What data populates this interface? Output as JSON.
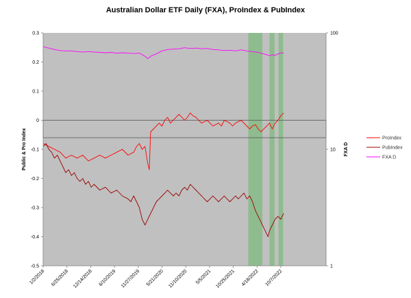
{
  "chart_data": {
    "type": "line",
    "title": "Australian Dollar ETF Daily (FXA), ProIndex & PubIndex",
    "ylabel": "Public & Pro Index",
    "y2label": "FXA D",
    "ylim": [
      -0.5,
      0.3
    ],
    "yticks": [
      "0.3",
      "0.2",
      "0.1",
      "0",
      "-0.1",
      "-0.2",
      "-0.3",
      "-0.4",
      "-0.5"
    ],
    "y2_scale": "log",
    "y2lim": [
      1,
      100
    ],
    "y2ticks": [
      "100",
      "10",
      "1"
    ],
    "x_range": [
      0,
      100
    ],
    "x_ticks": [
      "1/2/2018",
      "6/25/2018",
      "12/14/2018",
      "6/10/2019",
      "11/27/2019",
      "5/21/2020",
      "11/10/2020",
      "5/5/2021",
      "10/25/2021",
      "4/18/2022",
      "10/7/2022"
    ],
    "x_tick_positions": [
      0,
      8.4,
      16.8,
      25.2,
      33.6,
      42.0,
      50.4,
      58.8,
      67.2,
      75.6,
      84.0
    ],
    "highlight_bands": [
      [
        72.5,
        77.5
      ],
      [
        80.0,
        81.8
      ],
      [
        83.2,
        84.8
      ]
    ],
    "reference_box": {
      "y_top": 0.0,
      "y_bottom": -0.06
    },
    "background": "#c0c0c0",
    "band_color": "#8fbc8f",
    "legend_position": "right",
    "series": [
      {
        "name": "ProIndex",
        "axis": "left",
        "color": "#ff0000",
        "points": [
          [
            0,
            -0.08
          ],
          [
            2,
            -0.09
          ],
          [
            4,
            -0.1
          ],
          [
            6,
            -0.11
          ],
          [
            8,
            -0.13
          ],
          [
            10,
            -0.12
          ],
          [
            12,
            -0.13
          ],
          [
            14,
            -0.12
          ],
          [
            16,
            -0.14
          ],
          [
            18,
            -0.13
          ],
          [
            20,
            -0.12
          ],
          [
            22,
            -0.13
          ],
          [
            24,
            -0.12
          ],
          [
            26,
            -0.11
          ],
          [
            28,
            -0.1
          ],
          [
            30,
            -0.12
          ],
          [
            32,
            -0.11
          ],
          [
            33,
            -0.09
          ],
          [
            34,
            -0.08
          ],
          [
            35,
            -0.1
          ],
          [
            36,
            -0.09
          ],
          [
            37,
            -0.15
          ],
          [
            37.5,
            -0.17
          ],
          [
            38,
            -0.04
          ],
          [
            40,
            -0.02
          ],
          [
            41,
            -0.01
          ],
          [
            42,
            -0.02
          ],
          [
            43,
            0.0
          ],
          [
            44,
            0.01
          ],
          [
            45,
            -0.01
          ],
          [
            46,
            0.0
          ],
          [
            47,
            0.01
          ],
          [
            48,
            0.02
          ],
          [
            49,
            0.01
          ],
          [
            50,
            0.0
          ],
          [
            51,
            0.01
          ],
          [
            52,
            0.025
          ],
          [
            53,
            0.015
          ],
          [
            54,
            0.01
          ],
          [
            55,
            0.0
          ],
          [
            56,
            -0.01
          ],
          [
            57,
            -0.005
          ],
          [
            58,
            0.0
          ],
          [
            59,
            -0.01
          ],
          [
            60,
            -0.02
          ],
          [
            62,
            -0.01
          ],
          [
            63,
            -0.02
          ],
          [
            64,
            0.0
          ],
          [
            66,
            -0.01
          ],
          [
            67,
            -0.02
          ],
          [
            68,
            -0.01
          ],
          [
            70,
            0.0
          ],
          [
            71,
            -0.01
          ],
          [
            72,
            -0.02
          ],
          [
            73,
            -0.03
          ],
          [
            74,
            -0.02
          ],
          [
            75,
            -0.015
          ],
          [
            76,
            -0.03
          ],
          [
            77,
            -0.04
          ],
          [
            78,
            -0.03
          ],
          [
            79,
            -0.02
          ],
          [
            80,
            -0.01
          ],
          [
            81,
            -0.03
          ],
          [
            82,
            -0.01
          ],
          [
            83,
            0.0
          ],
          [
            84,
            0.015
          ],
          [
            85,
            0.025
          ]
        ]
      },
      {
        "name": "PubIndex",
        "axis": "left",
        "color": "#990000",
        "points": [
          [
            0,
            -0.09
          ],
          [
            1,
            -0.08
          ],
          [
            2,
            -0.1
          ],
          [
            3,
            -0.11
          ],
          [
            4,
            -0.13
          ],
          [
            5,
            -0.12
          ],
          [
            6,
            -0.14
          ],
          [
            7,
            -0.16
          ],
          [
            8,
            -0.18
          ],
          [
            9,
            -0.17
          ],
          [
            10,
            -0.19
          ],
          [
            11,
            -0.18
          ],
          [
            12,
            -0.2
          ],
          [
            13,
            -0.21
          ],
          [
            14,
            -0.2
          ],
          [
            15,
            -0.22
          ],
          [
            16,
            -0.21
          ],
          [
            17,
            -0.23
          ],
          [
            18,
            -0.22
          ],
          [
            20,
            -0.24
          ],
          [
            22,
            -0.23
          ],
          [
            24,
            -0.25
          ],
          [
            26,
            -0.24
          ],
          [
            28,
            -0.26
          ],
          [
            30,
            -0.27
          ],
          [
            31,
            -0.28
          ],
          [
            32,
            -0.26
          ],
          [
            33,
            -0.28
          ],
          [
            34,
            -0.3
          ],
          [
            35,
            -0.34
          ],
          [
            36,
            -0.36
          ],
          [
            36.5,
            -0.35
          ],
          [
            37,
            -0.34
          ],
          [
            38,
            -0.32
          ],
          [
            39,
            -0.3
          ],
          [
            40,
            -0.28
          ],
          [
            41,
            -0.27
          ],
          [
            42,
            -0.26
          ],
          [
            43,
            -0.25
          ],
          [
            44,
            -0.24
          ],
          [
            45,
            -0.25
          ],
          [
            46,
            -0.26
          ],
          [
            47,
            -0.25
          ],
          [
            48,
            -0.26
          ],
          [
            49,
            -0.24
          ],
          [
            50,
            -0.23
          ],
          [
            51,
            -0.24
          ],
          [
            52,
            -0.22
          ],
          [
            53,
            -0.23
          ],
          [
            54,
            -0.24
          ],
          [
            55,
            -0.25
          ],
          [
            56,
            -0.26
          ],
          [
            57,
            -0.27
          ],
          [
            58,
            -0.28
          ],
          [
            59,
            -0.27
          ],
          [
            60,
            -0.26
          ],
          [
            61,
            -0.27
          ],
          [
            62,
            -0.28
          ],
          [
            63,
            -0.27
          ],
          [
            64,
            -0.26
          ],
          [
            65,
            -0.27
          ],
          [
            66,
            -0.28
          ],
          [
            67,
            -0.27
          ],
          [
            68,
            -0.26
          ],
          [
            69,
            -0.27
          ],
          [
            70,
            -0.26
          ],
          [
            71,
            -0.25
          ],
          [
            72,
            -0.27
          ],
          [
            73,
            -0.26
          ],
          [
            74,
            -0.28
          ],
          [
            75,
            -0.31
          ],
          [
            76,
            -0.33
          ],
          [
            77,
            -0.35
          ],
          [
            78,
            -0.37
          ],
          [
            79,
            -0.39
          ],
          [
            79.5,
            -0.4
          ],
          [
            80,
            -0.38
          ],
          [
            81,
            -0.36
          ],
          [
            82,
            -0.34
          ],
          [
            83,
            -0.33
          ],
          [
            84,
            -0.34
          ],
          [
            85,
            -0.32
          ]
        ]
      },
      {
        "name": "FXA D",
        "axis": "right",
        "color": "#ff00ff",
        "points": [
          [
            0,
            76.0
          ],
          [
            2,
            74.0
          ],
          [
            4,
            72.0
          ],
          [
            6,
            70.5
          ],
          [
            8,
            70.0
          ],
          [
            10,
            70.0
          ],
          [
            12,
            69.0
          ],
          [
            14,
            68.5
          ],
          [
            16,
            69.0
          ],
          [
            18,
            68.5
          ],
          [
            20,
            68.0
          ],
          [
            22,
            67.5
          ],
          [
            24,
            68.0
          ],
          [
            26,
            67.0
          ],
          [
            28,
            67.5
          ],
          [
            30,
            67.0
          ],
          [
            32,
            66.5
          ],
          [
            34,
            67.0
          ],
          [
            35,
            65.0
          ],
          [
            36,
            63.0
          ],
          [
            37,
            60.0
          ],
          [
            38,
            63.0
          ],
          [
            40,
            66.0
          ],
          [
            42,
            70.0
          ],
          [
            44,
            72.0
          ],
          [
            46,
            72.5
          ],
          [
            48,
            73.0
          ],
          [
            50,
            74.5
          ],
          [
            52,
            73.5
          ],
          [
            54,
            74.0
          ],
          [
            56,
            73.0
          ],
          [
            58,
            73.5
          ],
          [
            60,
            72.0
          ],
          [
            62,
            71.5
          ],
          [
            64,
            70.5
          ],
          [
            66,
            71.0
          ],
          [
            68,
            70.0
          ],
          [
            70,
            71.5
          ],
          [
            72,
            70.0
          ],
          [
            74,
            69.0
          ],
          [
            76,
            68.0
          ],
          [
            78,
            66.0
          ],
          [
            79,
            65.0
          ],
          [
            80,
            63.5
          ],
          [
            81,
            65.0
          ],
          [
            82,
            64.0
          ],
          [
            83,
            66.0
          ],
          [
            84,
            67.0
          ],
          [
            85,
            67.5
          ]
        ]
      }
    ]
  }
}
